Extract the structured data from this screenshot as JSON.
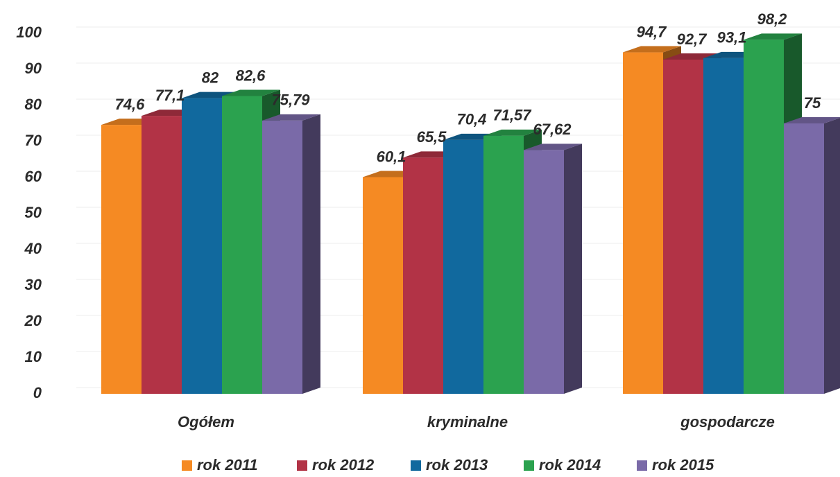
{
  "chart_data": {
    "type": "bar3d",
    "categories": [
      "Ogółem",
      "kryminalne",
      "gospodarcze"
    ],
    "series": [
      {
        "name": "rok 2011",
        "color": "#f58a23",
        "values": [
          74.6,
          60.1,
          94.7
        ],
        "value_labels": [
          "74,6",
          "60,1",
          "94,7"
        ]
      },
      {
        "name": "rok 2012",
        "color": "#b23346",
        "values": [
          77.1,
          65.5,
          92.7
        ],
        "value_labels": [
          "77,1",
          "65,5",
          "92,7"
        ]
      },
      {
        "name": "rok 2013",
        "color": "#11699e",
        "values": [
          82,
          70.4,
          93.1
        ],
        "value_labels": [
          "82",
          "70,4",
          "93,1"
        ]
      },
      {
        "name": "rok 2014",
        "color": "#2ba24f",
        "values": [
          82.6,
          71.57,
          98.2
        ],
        "value_labels": [
          "82,6",
          "71,57",
          "98,2"
        ]
      },
      {
        "name": "rok 2015",
        "color": "#7a6aa8",
        "values": [
          75.79,
          67.62,
          75
        ],
        "value_labels": [
          "75,79",
          "67,62",
          "75"
        ]
      }
    ],
    "ylim": [
      0,
      100
    ],
    "yticks": [
      0,
      10,
      20,
      30,
      40,
      50,
      60,
      70,
      80,
      90,
      100
    ],
    "grid": true
  }
}
